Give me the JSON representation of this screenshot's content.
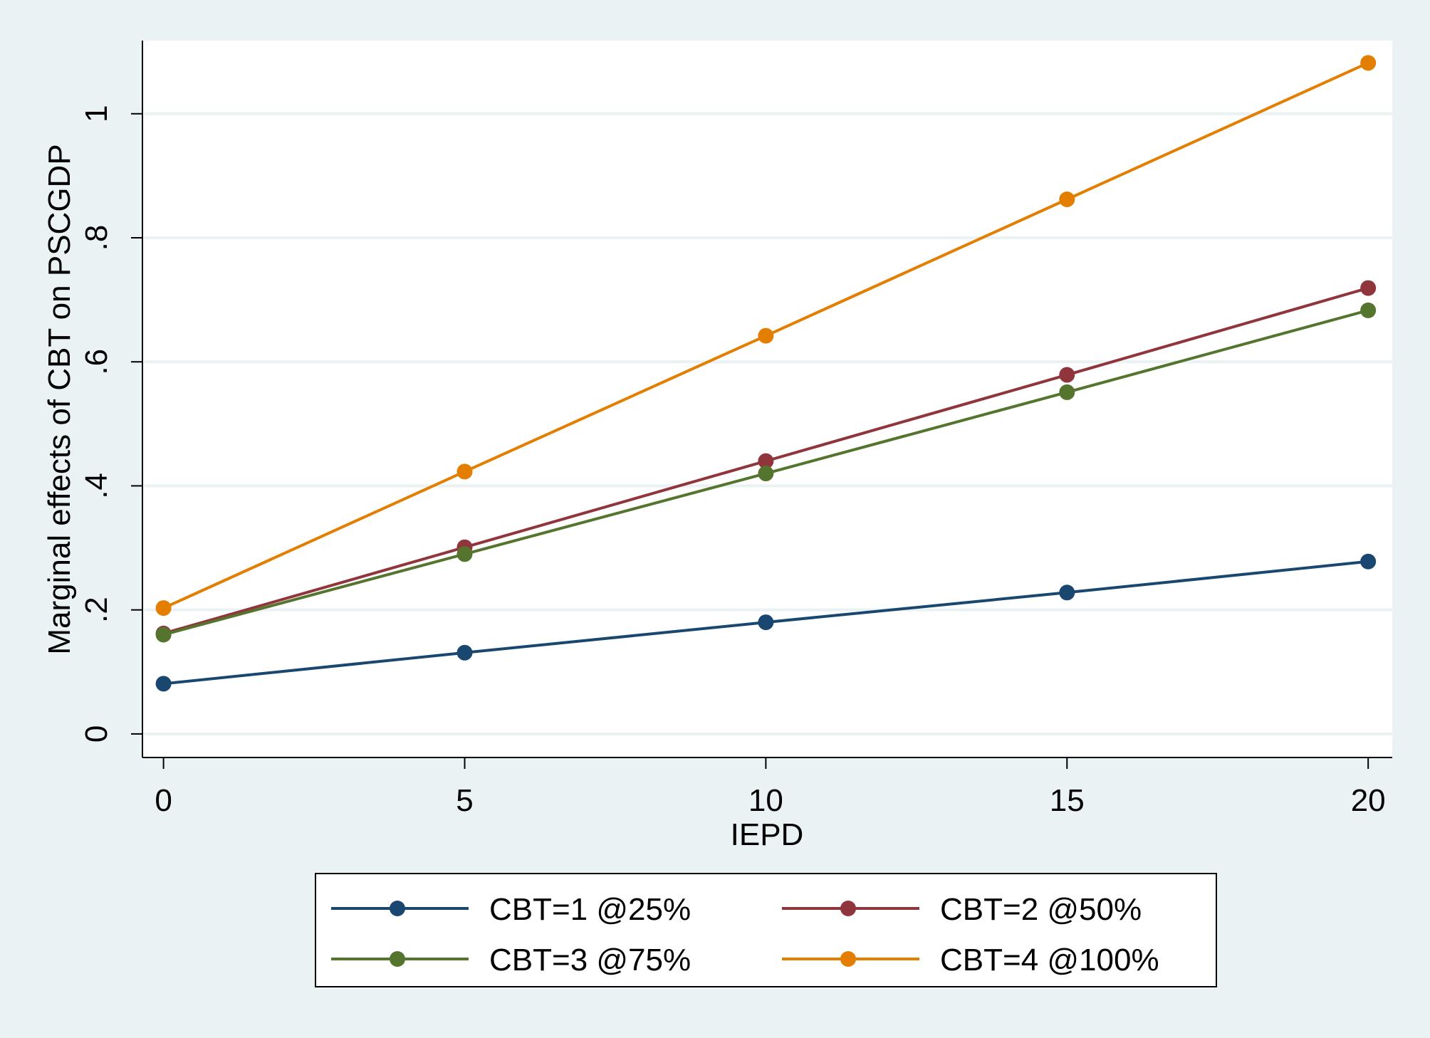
{
  "chart_data": {
    "type": "line",
    "title": "",
    "xlabel": "IEPD",
    "ylabel": "Marginal effects of CBT on PSCGDP",
    "x": [
      0,
      5,
      10,
      15,
      20
    ],
    "xlim": [
      -0.35,
      20.4
    ],
    "ylim": [
      -0.038,
      1.118
    ],
    "x_ticks": [
      0,
      5,
      10,
      15,
      20
    ],
    "x_tick_labels": [
      "0",
      "5",
      "10",
      "15",
      "20"
    ],
    "y_ticks": [
      0,
      0.2,
      0.4,
      0.6,
      0.8,
      1
    ],
    "y_tick_labels": [
      "0",
      ".2",
      ".4",
      ".6",
      ".8",
      "1"
    ],
    "grid": "horizontal",
    "legend_position": "bottom",
    "series": [
      {
        "name": "CBT=1 @25%",
        "color": "#1a476f",
        "values": [
          0.081,
          0.131,
          0.18,
          0.228,
          0.278
        ]
      },
      {
        "name": "CBT=2 @50%",
        "color": "#90353b",
        "values": [
          0.162,
          0.301,
          0.44,
          0.579,
          0.719
        ]
      },
      {
        "name": "CBT=3 @75%",
        "color": "#55752f",
        "values": [
          0.16,
          0.29,
          0.42,
          0.551,
          0.683
        ]
      },
      {
        "name": "CBT=4 @100%",
        "color": "#e37e00",
        "values": [
          0.203,
          0.423,
          0.642,
          0.862,
          1.082
        ]
      }
    ]
  }
}
